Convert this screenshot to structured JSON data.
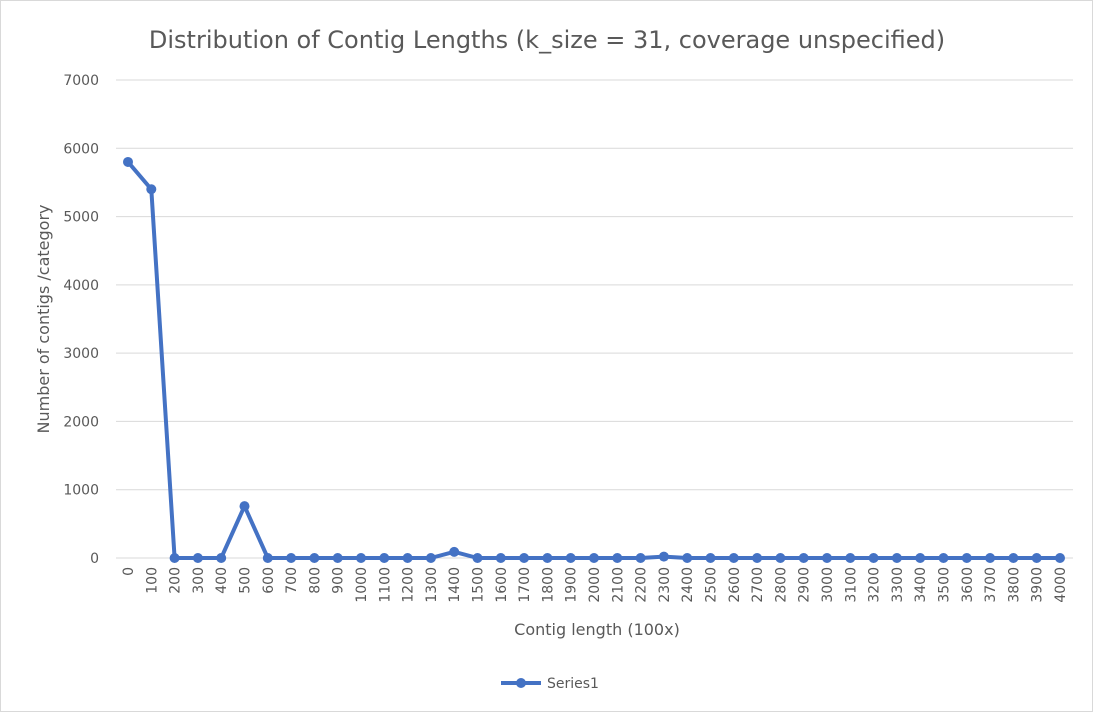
{
  "chart_data": {
    "type": "line",
    "title": "Distribution of Contig Lengths (k_size = 31, coverage unspecified)",
    "xlabel": "Contig length (100x)",
    "ylabel": "Number of contigs /category",
    "categories": [
      "0",
      "100",
      "200",
      "300",
      "400",
      "500",
      "600",
      "700",
      "800",
      "900",
      "1000",
      "1100",
      "1200",
      "1300",
      "1400",
      "1500",
      "1600",
      "1700",
      "1800",
      "1900",
      "2000",
      "2100",
      "2200",
      "2300",
      "2400",
      "2500",
      "2600",
      "2700",
      "2800",
      "2900",
      "3000",
      "3100",
      "3200",
      "3300",
      "3400",
      "3500",
      "3600",
      "3700",
      "3800",
      "3900",
      "4000"
    ],
    "series": [
      {
        "name": "Series1",
        "color": "#4472c4",
        "values": [
          5800,
          5400,
          0,
          0,
          0,
          760,
          0,
          0,
          0,
          0,
          0,
          0,
          0,
          0,
          90,
          0,
          0,
          0,
          0,
          0,
          0,
          0,
          0,
          20,
          0,
          0,
          0,
          0,
          0,
          0,
          0,
          0,
          0,
          0,
          0,
          0,
          0,
          0,
          0,
          0,
          0
        ]
      }
    ],
    "ylim": [
      0,
      7000
    ],
    "yticks": [
      0,
      1000,
      2000,
      3000,
      4000,
      5000,
      6000,
      7000
    ],
    "grid": "horizontal",
    "legend_position": "bottom",
    "colors": {
      "series": "#4472c4",
      "grid": "#d9d9d9",
      "text": "#595959"
    }
  }
}
